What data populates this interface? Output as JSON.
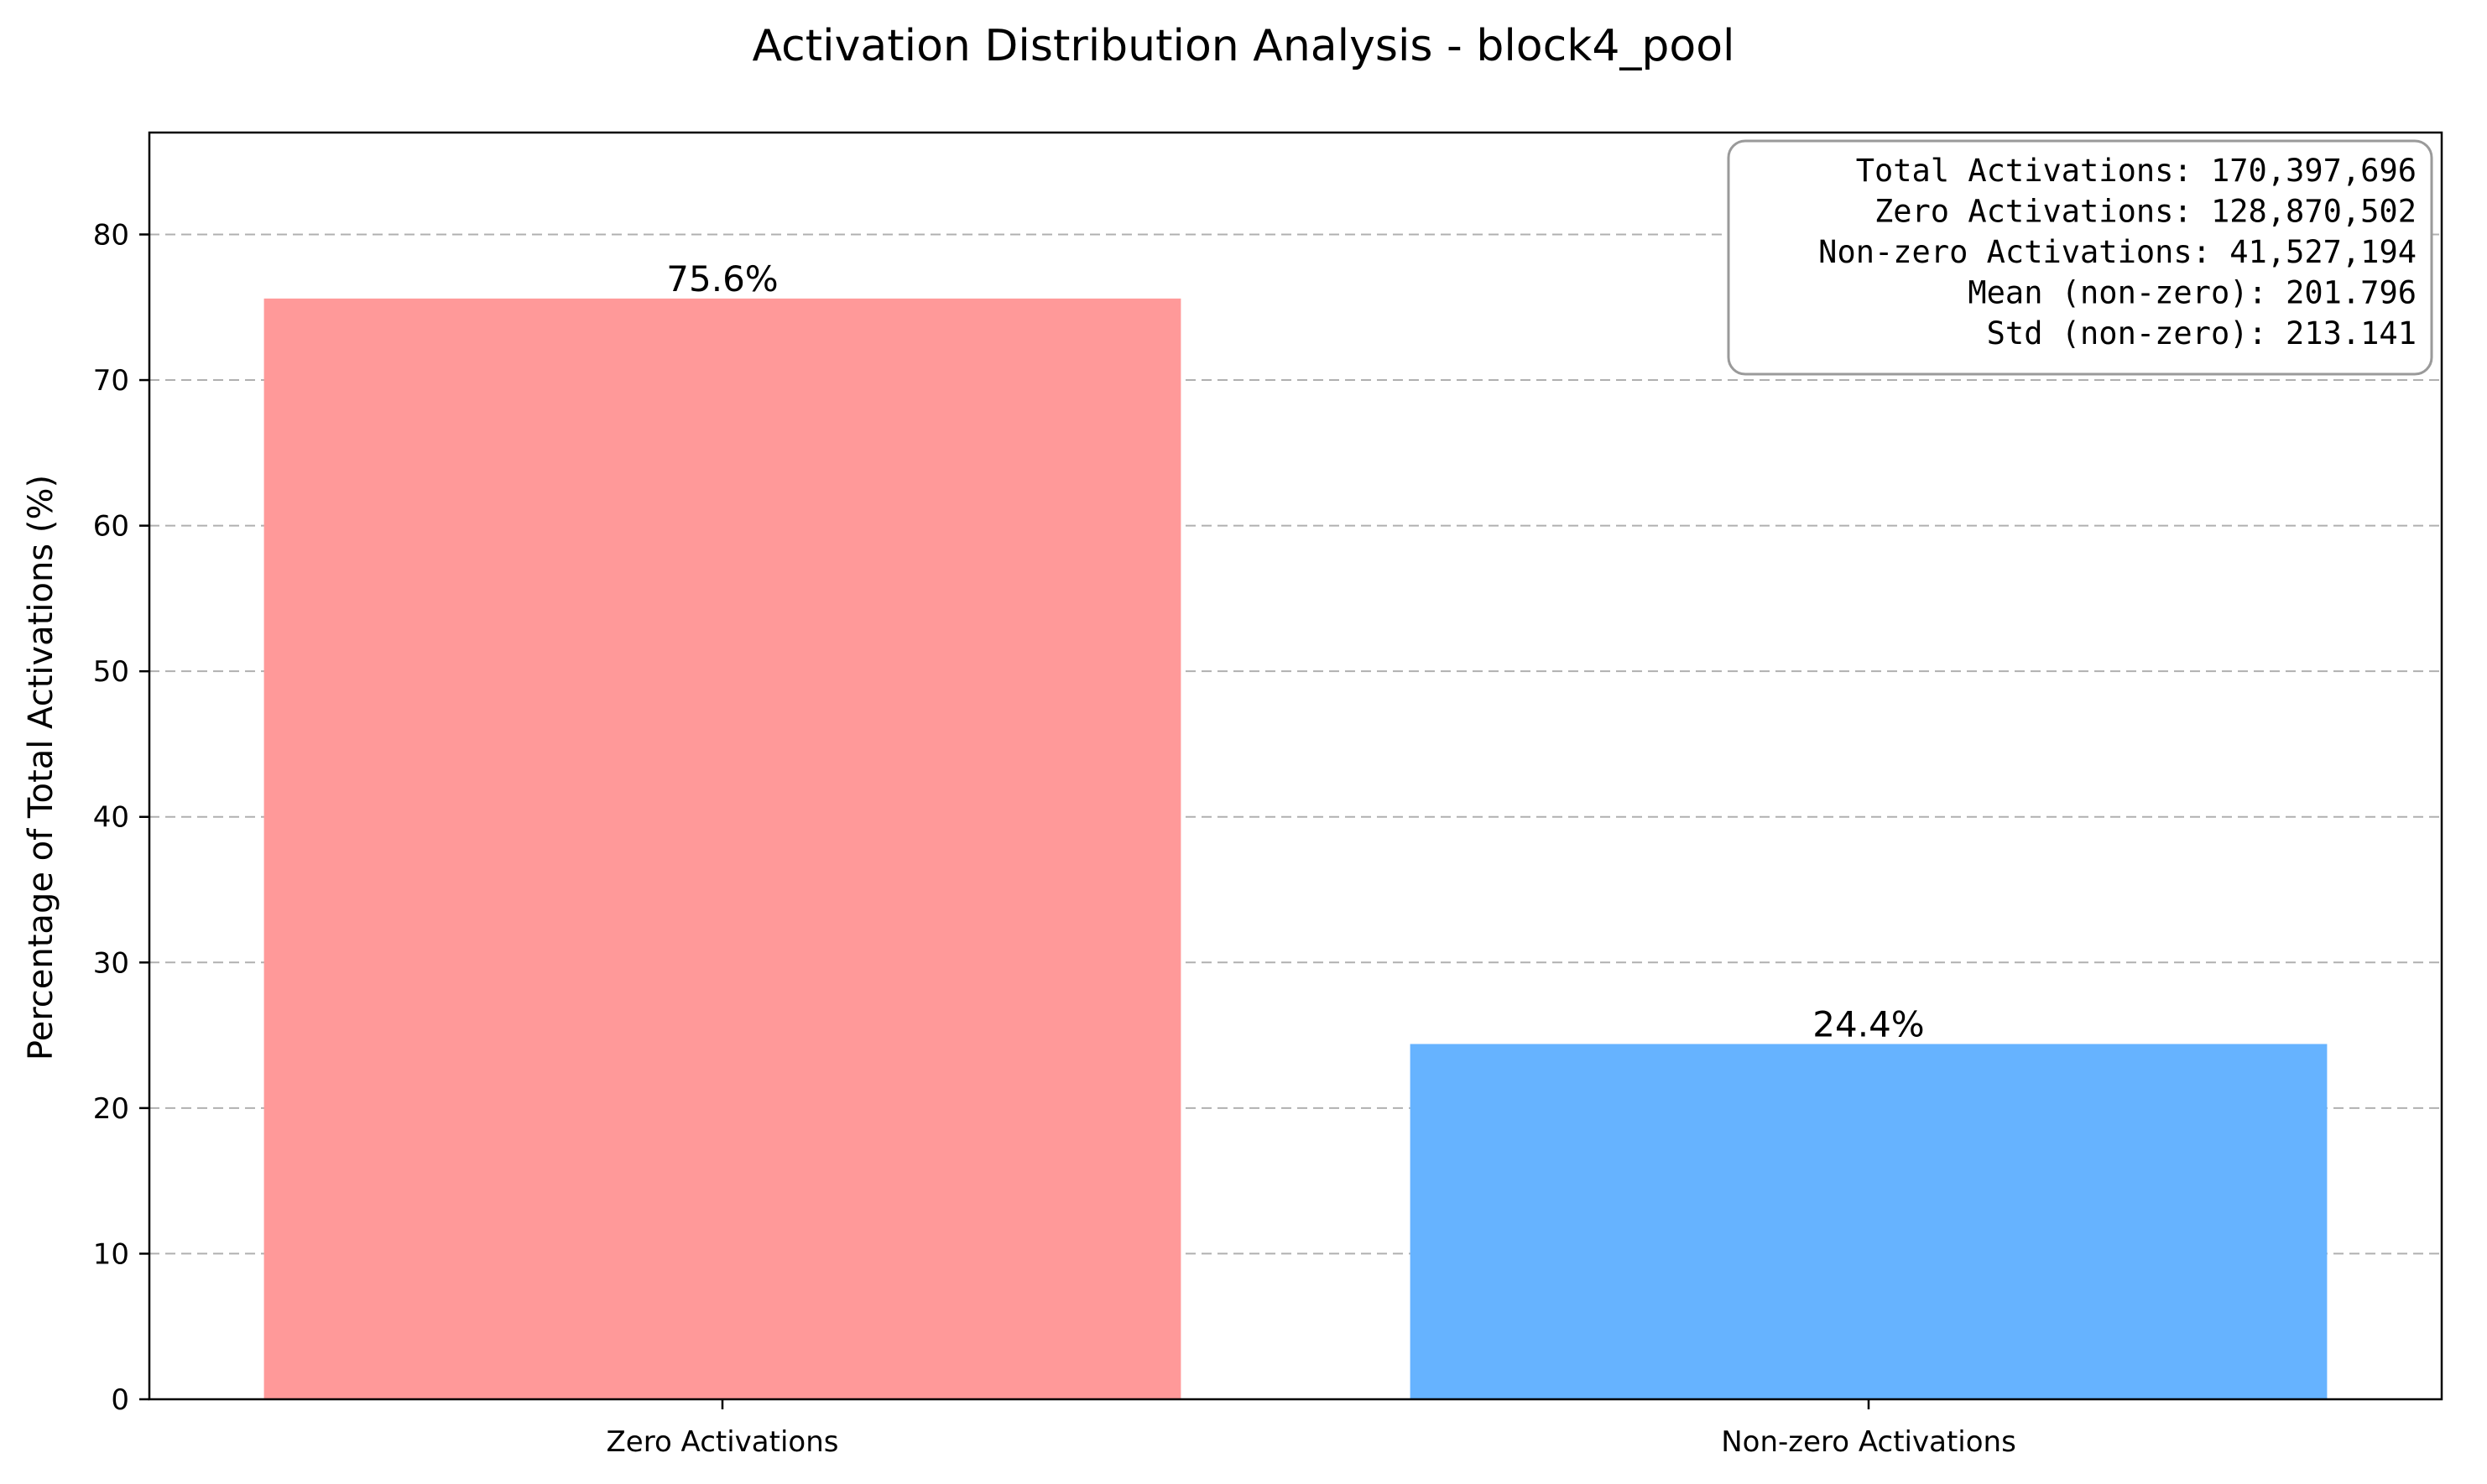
{
  "chart_data": {
    "type": "bar",
    "title": "Activation Distribution Analysis - block4_pool",
    "xlabel": "",
    "ylabel": "Percentage of Total Activations (%)",
    "categories": [
      "Zero Activations",
      "Non-zero Activations"
    ],
    "values": [
      75.6,
      24.4
    ],
    "value_labels": [
      "75.6%",
      "24.4%"
    ],
    "colors": [
      "#ff9999",
      "#66b3ff"
    ],
    "ylim": [
      0,
      87
    ],
    "yticks": [
      0,
      10,
      20,
      30,
      40,
      50,
      60,
      70,
      80
    ],
    "grid": "y-dashed",
    "stats_box": {
      "placement": "top-right",
      "lines": [
        "Total Activations: 170,397,696",
        "Zero Activations: 128,870,502",
        "Non-zero Activations: 41,527,194",
        "Mean (non-zero): 201.796",
        "Std (non-zero): 213.141"
      ]
    }
  }
}
